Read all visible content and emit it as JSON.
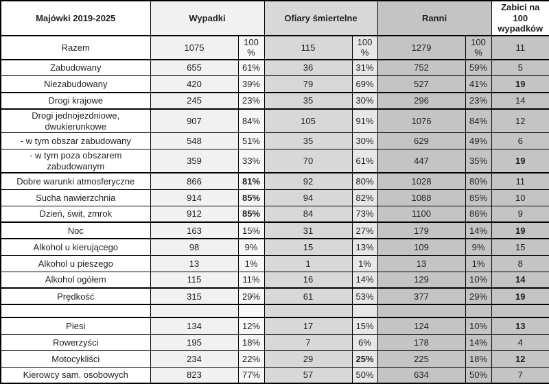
{
  "table": {
    "headers": {
      "col_label": "Majówki 2019-2025",
      "col_wypadki": "Wypadki",
      "col_ofiary": "Ofiary śmiertelne",
      "col_ranni": "Ranni",
      "col_zabici": "Zabici na 100 wypadków"
    },
    "colors": {
      "label_bg": "#ffffff",
      "wypadki_bg": "#f1f1f1",
      "wypadki_pct_bg": "#f7f7f7",
      "ofiary_bg": "#d8d8d8",
      "ofiary_pct_bg": "#e7e7e7",
      "ranni_bg": "#c4c4c4",
      "ranni_pct_bg": "#c4c4c4",
      "zabici_bg": "#c4c4c4",
      "border": "#000000"
    },
    "rows": [
      {
        "label": "Razem",
        "wypadki": "1075",
        "wypadki_pct": "100%",
        "ofiary": "115",
        "ofiary_pct": "100 %",
        "ranni": "1279",
        "ranni_pct": "100%",
        "zabici": "11",
        "bold": [],
        "thick_bottom": true,
        "tall": true
      },
      {
        "label": "Zabudowany",
        "wypadki": "655",
        "wypadki_pct": "61%",
        "ofiary": "36",
        "ofiary_pct": "31%",
        "ranni": "752",
        "ranni_pct": "59%",
        "zabici": "5",
        "bold": [],
        "thick_bottom": false
      },
      {
        "label": "Niezabudowany",
        "wypadki": "420",
        "wypadki_pct": "39%",
        "ofiary": "79",
        "ofiary_pct": "69%",
        "ranni": "527",
        "ranni_pct": "41%",
        "zabici": "19",
        "bold": [
          "zabici"
        ],
        "thick_bottom": true
      },
      {
        "label": "Drogi krajowe",
        "wypadki": "245",
        "wypadki_pct": "23%",
        "ofiary": "35",
        "ofiary_pct": "30%",
        "ranni": "296",
        "ranni_pct": "23%",
        "zabici": "14",
        "bold": [],
        "thick_bottom": true
      },
      {
        "label": "Drogi jednojezdniowe, dwukierunkowe",
        "wypadki": "907",
        "wypadki_pct": "84%",
        "ofiary": "105",
        "ofiary_pct": "91%",
        "ranni": "1076",
        "ranni_pct": "84%",
        "zabici": "12",
        "bold": [],
        "thick_bottom": false
      },
      {
        "label": "- w tym obszar zabudowany",
        "wypadki": "548",
        "wypadki_pct": "51%",
        "ofiary": "35",
        "ofiary_pct": "30%",
        "ranni": "629",
        "ranni_pct": "49%",
        "zabici": "6",
        "bold": [],
        "thick_bottom": false
      },
      {
        "label": "- w tym poza obszarem zabudowanym",
        "wypadki": "359",
        "wypadki_pct": "33%",
        "ofiary": "70",
        "ofiary_pct": "61%",
        "ranni": "447",
        "ranni_pct": "35%",
        "zabici": "19",
        "bold": [
          "zabici"
        ],
        "thick_bottom": true
      },
      {
        "label": "Dobre warunki atmosferyczne",
        "wypadki": "866",
        "wypadki_pct": "81%",
        "ofiary": "92",
        "ofiary_pct": "80%",
        "ranni": "1028",
        "ranni_pct": "80%",
        "zabici": "11",
        "bold": [
          "wypadki_pct"
        ],
        "thick_bottom": false
      },
      {
        "label": "Sucha nawierzchnia",
        "wypadki": "914",
        "wypadki_pct": "85%",
        "ofiary": "94",
        "ofiary_pct": "82%",
        "ranni": "1088",
        "ranni_pct": "85%",
        "zabici": "10",
        "bold": [
          "wypadki_pct"
        ],
        "thick_bottom": false
      },
      {
        "label": "Dzień, świt, zmrok",
        "wypadki": "912",
        "wypadki_pct": "85%",
        "ofiary": "84",
        "ofiary_pct": "73%",
        "ranni": "1100",
        "ranni_pct": "86%",
        "zabici": "9",
        "bold": [
          "wypadki_pct"
        ],
        "thick_bottom": true
      },
      {
        "label": "Noc",
        "wypadki": "163",
        "wypadki_pct": "15%",
        "ofiary": "31",
        "ofiary_pct": "27%",
        "ranni": "179",
        "ranni_pct": "14%",
        "zabici": "19",
        "bold": [
          "zabici"
        ],
        "thick_bottom": true
      },
      {
        "label": "Alkohol u kierującego",
        "wypadki": "98",
        "wypadki_pct": "9%",
        "ofiary": "15",
        "ofiary_pct": "13%",
        "ranni": "109",
        "ranni_pct": "9%",
        "zabici": "15",
        "bold": [],
        "thick_bottom": false
      },
      {
        "label": "Alkohol u pieszego",
        "wypadki": "13",
        "wypadki_pct": "1%",
        "ofiary": "1",
        "ofiary_pct": "1%",
        "ranni": "13",
        "ranni_pct": "1%",
        "zabici": "8",
        "bold": [],
        "thick_bottom": false
      },
      {
        "label": "Alkohol ogółem",
        "wypadki": "115",
        "wypadki_pct": "11%",
        "ofiary": "16",
        "ofiary_pct": "14%",
        "ranni": "129",
        "ranni_pct": "10%",
        "zabici": "14",
        "bold": [
          "zabici"
        ],
        "thick_bottom": true
      },
      {
        "label": "Prędkość",
        "wypadki": "315",
        "wypadki_pct": "29%",
        "ofiary": "61",
        "ofiary_pct": "53%",
        "ranni": "377",
        "ranni_pct": "29%",
        "zabici": "19",
        "bold": [
          "zabici"
        ],
        "thick_bottom": true
      },
      {
        "label": "",
        "wypadki": "",
        "wypadki_pct": "",
        "ofiary": "",
        "ofiary_pct": "",
        "ranni": "",
        "ranni_pct": "",
        "zabici": "",
        "bold": [],
        "thick_bottom": true,
        "empty": true
      },
      {
        "label": "Piesi",
        "wypadki": "134",
        "wypadki_pct": "12%",
        "ofiary": "17",
        "ofiary_pct": "15%",
        "ranni": "124",
        "ranni_pct": "10%",
        "zabici": "13",
        "bold": [
          "zabici"
        ],
        "thick_bottom": false
      },
      {
        "label": "Rowerzyści",
        "wypadki": "195",
        "wypadki_pct": "18%",
        "ofiary": "7",
        "ofiary_pct": "6%",
        "ranni": "178",
        "ranni_pct": "14%",
        "zabici": "4",
        "bold": [],
        "thick_bottom": false
      },
      {
        "label": "Motocykliści",
        "wypadki": "234",
        "wypadki_pct": "22%",
        "ofiary": "29",
        "ofiary_pct": "25%",
        "ranni": "225",
        "ranni_pct": "18%",
        "zabici": "12",
        "bold": [
          "ofiary_pct",
          "zabici"
        ],
        "thick_bottom": false
      },
      {
        "label": "Kierowcy sam. osobowych",
        "wypadki": "823",
        "wypadki_pct": "77%",
        "ofiary": "57",
        "ofiary_pct": "50%",
        "ranni": "634",
        "ranni_pct": "50%",
        "zabici": "7",
        "bold": [],
        "thick_bottom": true
      }
    ]
  }
}
